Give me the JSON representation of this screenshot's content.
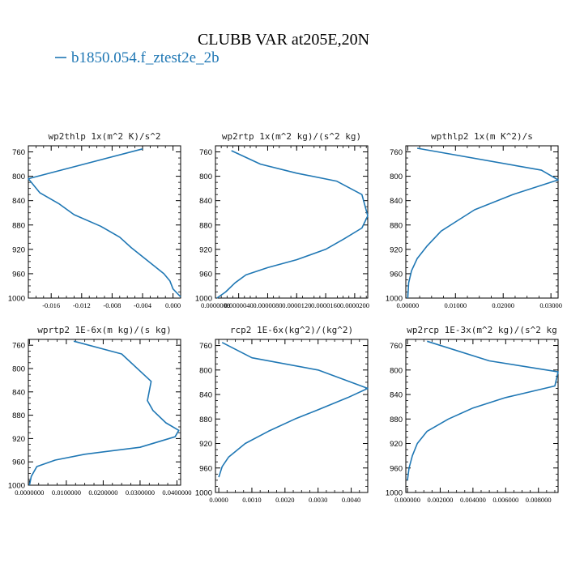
{
  "figure": {
    "title": "CLUBB VAR at205E,20N",
    "legend": "b1850.054.f_ztest2e_2b",
    "line_color": "#1f77b4"
  },
  "chart_data": [
    {
      "type": "line",
      "title": "wp2thlp  1x(m^2 K)/s^2",
      "xlim": [
        -0.019,
        0.001
      ],
      "xticks": [
        -0.016,
        -0.012,
        -0.008,
        -0.004,
        0.0
      ],
      "xtick_labels": [
        "-0.016",
        "-0.012",
        "-0.008",
        "-0.004",
        "0.000"
      ],
      "ylim": [
        1000,
        750
      ],
      "yticks": [
        760,
        800,
        840,
        880,
        920,
        960,
        1000
      ],
      "ytick_labels": [
        "760",
        "800",
        "840",
        "880",
        "920",
        "960",
        "1000"
      ],
      "series": [
        {
          "x": [
            -0.004,
            -0.019,
            -0.0175,
            -0.015,
            -0.013,
            -0.0095,
            -0.007,
            -0.0055,
            -0.004,
            -0.0025,
            -0.0012,
            -0.0004,
            0.0,
            0.001
          ],
          "y": [
            755,
            804,
            827,
            845,
            863,
            882,
            900,
            917,
            932,
            947,
            960,
            972,
            985,
            998
          ]
        }
      ]
    },
    {
      "type": "line",
      "title": "wp2rtp  1x(m^2 kg)/(s^2 kg)",
      "xlim": [
        8e-07,
        2.18e-05
      ],
      "xticks": [
        8e-07,
        4e-06,
        8e-06,
        1.2e-05,
        1.6e-05,
        2e-05
      ],
      "xtick_labels": [
        "0.0000008",
        "0.0000040",
        "0.0000080",
        "0.0000120",
        "0.0000160",
        "0.0000200"
      ],
      "ylim": [
        1000,
        750
      ],
      "yticks": [
        760,
        800,
        840,
        880,
        920,
        960,
        1000
      ],
      "ytick_labels": [
        "760",
        "800",
        "840",
        "880",
        "920",
        "960",
        "1000"
      ],
      "series": [
        {
          "x": [
            3e-06,
            7e-06,
            1.2e-05,
            1.75e-05,
            2.1e-05,
            2.18e-05,
            2.1e-05,
            1.85e-05,
            1.6e-05,
            1.2e-05,
            8e-06,
            5e-06,
            3.5e-06,
            2.2e-06,
            1e-06
          ],
          "y": [
            758,
            780,
            795,
            808,
            830,
            865,
            885,
            903,
            920,
            937,
            950,
            962,
            975,
            990,
            1000
          ]
        }
      ]
    },
    {
      "type": "line",
      "title": "wpthlp2  1x(m K^2)/s",
      "xlim": [
        -0.0004,
        0.0315
      ],
      "xticks": [
        0.0,
        0.01,
        0.02,
        0.03
      ],
      "xtick_labels": [
        "0.00000",
        "0.01000",
        "0.02000",
        "0.03000"
      ],
      "ylim": [
        1000,
        750
      ],
      "yticks": [
        760,
        800,
        840,
        880,
        920,
        960,
        1000
      ],
      "ytick_labels": [
        "760",
        "800",
        "840",
        "880",
        "920",
        "960",
        "1000"
      ],
      "series": [
        {
          "x": [
            0.002,
            0.028,
            0.0315,
            0.022,
            0.014,
            0.01,
            0.007,
            0.004,
            0.002,
            0.0008,
            0.0002,
            0.0
          ],
          "y": [
            754,
            790,
            806,
            830,
            855,
            875,
            890,
            915,
            935,
            955,
            975,
            1000
          ]
        }
      ]
    },
    {
      "type": "line",
      "title": "wprtp2  1E-6x(m kg)/(s kg)",
      "xlim": [
        -0.0003,
        0.041
      ],
      "xticks": [
        0.0,
        0.01,
        0.02,
        0.03,
        0.04
      ],
      "xtick_labels": [
        "0.0000000",
        "0.0100000",
        "0.0200000",
        "0.0300000",
        "0.0400000"
      ],
      "ylim": [
        1000,
        750
      ],
      "yticks": [
        760,
        800,
        840,
        880,
        920,
        960,
        1000
      ],
      "ytick_labels": [
        "760",
        "800",
        "840",
        "880",
        "920",
        "960",
        "1000"
      ],
      "series": [
        {
          "x": [
            0.012,
            0.025,
            0.033,
            0.032,
            0.0335,
            0.037,
            0.0405,
            0.0395,
            0.03,
            0.015,
            0.007,
            0.002,
            0.0005,
            0.0
          ],
          "y": [
            753,
            775,
            822,
            855,
            872,
            893,
            906,
            917,
            935,
            947,
            957,
            968,
            985,
            1000
          ]
        }
      ]
    },
    {
      "type": "line",
      "title": "rcp2  1E-6x(kg^2)/(kg^2)",
      "xlim": [
        -0.0001,
        0.0045
      ],
      "xticks": [
        0.0,
        0.001,
        0.002,
        0.003,
        0.004
      ],
      "xtick_labels": [
        "0.0000",
        "0.0010",
        "0.0020",
        "0.0030",
        "0.0040"
      ],
      "ylim": [
        1000,
        750
      ],
      "yticks": [
        760,
        800,
        840,
        880,
        920,
        960,
        1000
      ],
      "ytick_labels": [
        "760",
        "800",
        "840",
        "880",
        "920",
        "960",
        "1000"
      ],
      "series": [
        {
          "x": [
            0.0001,
            0.001,
            0.003,
            0.0045,
            0.0039,
            0.003,
            0.0023,
            0.0015,
            0.0008,
            0.0003,
            0.0001,
            0.0
          ],
          "y": [
            755,
            780,
            800,
            830,
            845,
            865,
            880,
            900,
            920,
            942,
            958,
            975
          ]
        }
      ]
    },
    {
      "type": "line",
      "title": "wp2rcp  1E-3x(m^2 kg)/(s^2 kg",
      "xlim": [
        -0.0001,
        0.0092
      ],
      "xticks": [
        0.0,
        0.002,
        0.004,
        0.006,
        0.008
      ],
      "xtick_labels": [
        "0.000000",
        "0.002000",
        "0.004000",
        "0.006000",
        "0.008000"
      ],
      "ylim": [
        1000,
        750
      ],
      "yticks": [
        760,
        800,
        840,
        880,
        920,
        960,
        1000
      ],
      "ytick_labels": [
        "760",
        "800",
        "840",
        "880",
        "920",
        "960",
        "1000"
      ],
      "series": [
        {
          "x": [
            0.0012,
            0.005,
            0.0092,
            0.009,
            0.006,
            0.004,
            0.0025,
            0.0012,
            0.0006,
            0.0003,
            0.0001,
            0.0
          ],
          "y": [
            753,
            785,
            803,
            826,
            845,
            862,
            880,
            900,
            920,
            940,
            960,
            980
          ]
        }
      ]
    }
  ]
}
